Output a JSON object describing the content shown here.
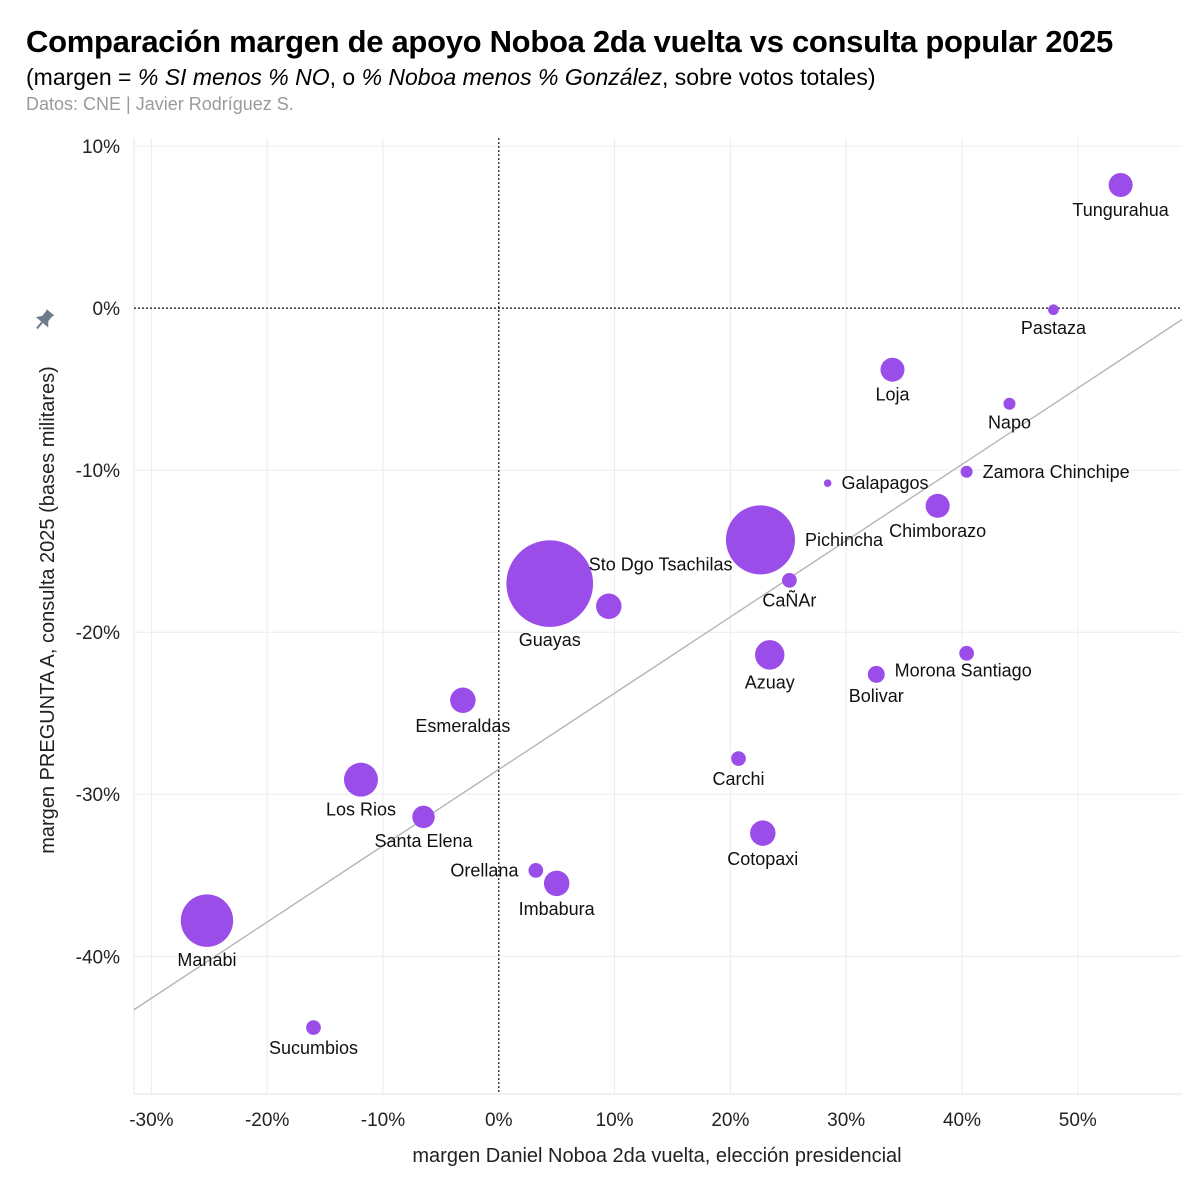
{
  "header": {
    "title": "Comparación margen de apoyo Noboa 2da vuelta vs consulta popular 2025",
    "subtitle_pre": "(margen = ",
    "subtitle_em1": "% SI menos % NO",
    "subtitle_mid": ", o ",
    "subtitle_em2": "% Noboa menos % González",
    "subtitle_post": ", sobre votos totales)",
    "source": "Datos: CNE | Javier Rodríguez S."
  },
  "colors": {
    "point": "#9b4dea",
    "trend": "#b5b5b5",
    "grid": "#ececec",
    "pin": "#6e7b8b"
  },
  "icons": {
    "pin": "pin-icon"
  },
  "chart_data": {
    "type": "scatter",
    "xlabel": "margen Daniel Noboa 2da vuelta, elección presidencial",
    "ylabel": "margen PREGUNTA A, consulta 2025 (bases militares)",
    "xlim": [
      -31.5,
      59
    ],
    "ylim": [
      -48.5,
      10.5
    ],
    "x_ticks": [
      -30,
      -20,
      -10,
      0,
      10,
      20,
      30,
      40,
      50
    ],
    "x_tick_labels": [
      "-30%",
      "-20%",
      "-10%",
      "0%",
      "10%",
      "20%",
      "30%",
      "40%",
      "50%"
    ],
    "y_ticks": [
      10,
      0,
      -10,
      -20,
      -30,
      -40
    ],
    "y_tick_labels": [
      "10%",
      "0%",
      "-10%",
      "-20%",
      "-30%",
      "-40%"
    ],
    "reference_lines": {
      "x": 0,
      "y": 0,
      "style": "dotted"
    },
    "trendline": {
      "x": [
        -31.5,
        59
      ],
      "y": [
        -43.3,
        -0.7
      ]
    },
    "grid": true,
    "points": [
      {
        "label": "Tungurahua",
        "x": 53.7,
        "y": 7.6,
        "size": 40,
        "label_pos": "below"
      },
      {
        "label": "Pastaza",
        "x": 47.9,
        "y": -0.1,
        "size": 8,
        "label_pos": "below"
      },
      {
        "label": "Loja",
        "x": 34.0,
        "y": -3.8,
        "size": 40,
        "label_pos": "below"
      },
      {
        "label": "Napo",
        "x": 44.1,
        "y": -5.9,
        "size": 10,
        "label_pos": "below"
      },
      {
        "label": "Zamora Chinchipe",
        "x": 40.4,
        "y": -10.1,
        "size": 10,
        "label_pos": "right"
      },
      {
        "label": "Galapagos",
        "x": 28.4,
        "y": -10.8,
        "size": 4,
        "label_pos": "right"
      },
      {
        "label": "Chimborazo",
        "x": 37.9,
        "y": -12.2,
        "size": 40,
        "label_pos": "below"
      },
      {
        "label": "Pichincha",
        "x": 22.6,
        "y": -14.3,
        "size": 330,
        "label_pos": "right"
      },
      {
        "label": "CaÑAr",
        "x": 25.1,
        "y": -16.8,
        "size": 15,
        "label_pos": "below"
      },
      {
        "label": "Sto Dgo Tsachilas",
        "x": 9.5,
        "y": -18.4,
        "size": 45,
        "label_pos": "above-right"
      },
      {
        "label": "Guayas",
        "x": 4.4,
        "y": -17.0,
        "size": 520,
        "label_pos": "below"
      },
      {
        "label": "Azuay",
        "x": 23.4,
        "y": -21.4,
        "size": 60,
        "label_pos": "below"
      },
      {
        "label": "Morona Santiago",
        "x": 40.4,
        "y": -21.3,
        "size": 15,
        "label_pos": "below-right"
      },
      {
        "label": "Bolivar",
        "x": 32.6,
        "y": -22.6,
        "size": 20,
        "label_pos": "below"
      },
      {
        "label": "Esmeraldas",
        "x": -3.1,
        "y": -24.2,
        "size": 45,
        "label_pos": "below"
      },
      {
        "label": "Carchi",
        "x": 20.7,
        "y": -27.8,
        "size": 15,
        "label_pos": "below"
      },
      {
        "label": "Los Rios",
        "x": -11.9,
        "y": -29.1,
        "size": 80,
        "label_pos": "below"
      },
      {
        "label": "Santa Elena",
        "x": -6.5,
        "y": -31.4,
        "size": 35,
        "label_pos": "below"
      },
      {
        "label": "Cotopaxi",
        "x": 22.8,
        "y": -32.4,
        "size": 45,
        "label_pos": "below"
      },
      {
        "label": "Orellana",
        "x": 3.2,
        "y": -34.7,
        "size": 15,
        "label_pos": "left"
      },
      {
        "label": "Imbabura",
        "x": 5.0,
        "y": -35.5,
        "size": 45,
        "label_pos": "below"
      },
      {
        "label": "Manabi",
        "x": -25.2,
        "y": -37.8,
        "size": 190,
        "label_pos": "below"
      },
      {
        "label": "Sucumbios",
        "x": -16.0,
        "y": -44.4,
        "size": 15,
        "label_pos": "below"
      }
    ]
  }
}
